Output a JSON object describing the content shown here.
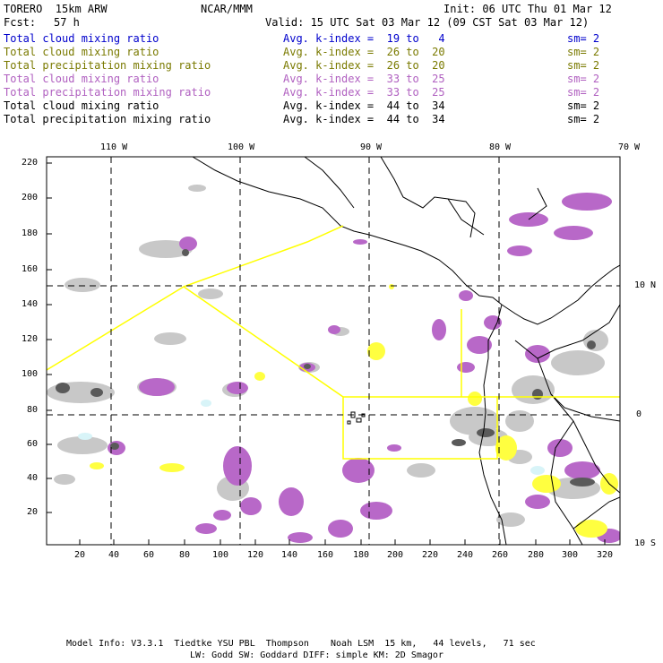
{
  "header": {
    "model": "TORERO  15km ARW",
    "org": "NCAR/MMM",
    "init": "Init: 06 UTC Thu 01 Mar 12",
    "fcst_label": "Fcst:",
    "fcst_value": "57 h",
    "valid": "Valid: 15 UTC Sat 03 Mar 12 (09 CST Sat 03 Mar 12)"
  },
  "legend": [
    {
      "field": "Total cloud mixing ratio",
      "kindex": "Avg. k-index =  19 to   4",
      "sm": "sm= 2",
      "color": "#0000cc"
    },
    {
      "field": "Total cloud mixing ratio",
      "kindex": "Avg. k-index =  26 to  20",
      "sm": "sm= 2",
      "color": "#7a7a00"
    },
    {
      "field": "Total precipitation mixing ratio",
      "kindex": "Avg. k-index =  26 to  20",
      "sm": "sm= 2",
      "color": "#7a7a00"
    },
    {
      "field": "Total cloud mixing ratio",
      "kindex": "Avg. k-index =  33 to  25",
      "sm": "sm= 2",
      "color": "#b060c0"
    },
    {
      "field": "Total precipitation mixing ratio",
      "kindex": "Avg. k-index =  33 to  25",
      "sm": "sm= 2",
      "color": "#b060c0"
    },
    {
      "field": "Total cloud mixing ratio",
      "kindex": "Avg. k-index =  44 to  34",
      "sm": "sm= 2",
      "color": "#000000"
    },
    {
      "field": "Total precipitation mixing ratio",
      "kindex": "Avg. k-index =  44 to  34",
      "sm": "sm= 2",
      "color": "#000000"
    }
  ],
  "axes": {
    "lon_labels": [
      "110 W",
      "100 W",
      "90 W",
      "80 W",
      "70 W"
    ],
    "lat_labels": [
      "10 N",
      "0",
      "10 S"
    ],
    "y_ticks": [
      "20",
      "40",
      "60",
      "80",
      "100",
      "120",
      "140",
      "160",
      "180",
      "200",
      "220"
    ],
    "x_ticks": [
      "20",
      "40",
      "60",
      "80",
      "100",
      "120",
      "140",
      "160",
      "180",
      "200",
      "220",
      "240",
      "260",
      "280",
      "300",
      "320"
    ]
  },
  "colors": {
    "cloud_light": "#c8c8c8",
    "cloud_dark": "#5a5a5a",
    "precip_purple": "#b868c8",
    "precip_yellow": "#ffff40",
    "cyan": "#d8f4f8",
    "domain_outline": "#ffff00"
  },
  "footer": {
    "line1": "Model Info: V3.3.1  Tiedtke YSU PBL  Thompson    Noah LSM  15 km,   44 levels,   71 sec",
    "line2": "LW: Godd SW: Goddard DIFF: simple KM: 2D Smagor"
  }
}
